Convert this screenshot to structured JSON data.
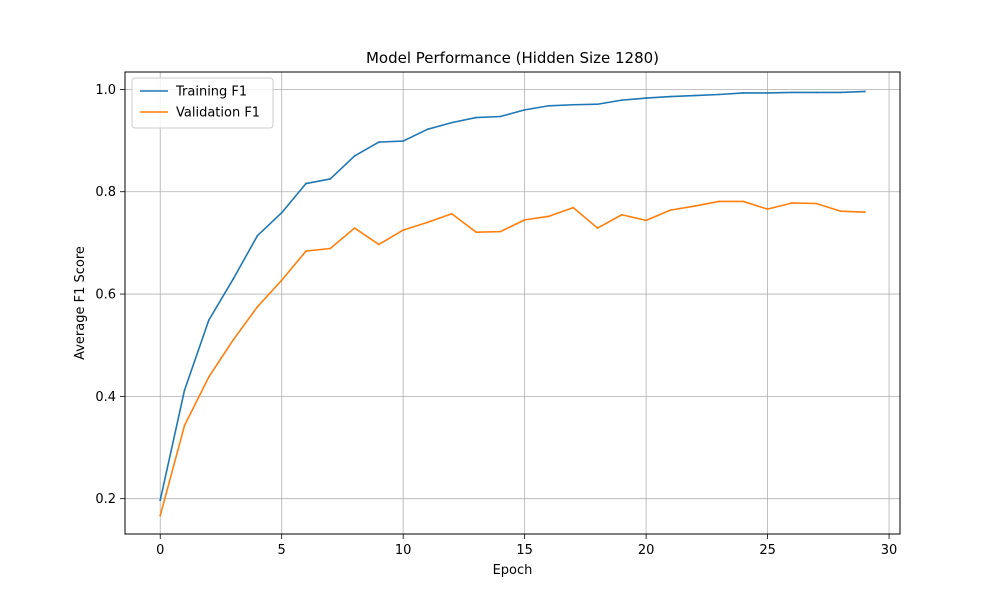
{
  "chart_data": {
    "type": "line",
    "title": "Model Performance (Hidden Size 1280)",
    "xlabel": "Epoch",
    "ylabel": "Average F1 Score",
    "xlim": [
      -1.45,
      30.45
    ],
    "ylim": [
      0.131,
      1.034
    ],
    "xticks": [
      0,
      5,
      10,
      15,
      20,
      25,
      30
    ],
    "xtick_labels": [
      "0",
      "5",
      "10",
      "15",
      "20",
      "25",
      "30"
    ],
    "yticks": [
      0.2,
      0.4,
      0.6,
      0.8,
      1.0
    ],
    "ytick_labels": [
      "0.2",
      "0.4",
      "0.6",
      "0.8",
      "1.0"
    ],
    "grid": true,
    "legend_position": "top-left",
    "x": [
      0,
      1,
      2,
      3,
      4,
      5,
      6,
      7,
      8,
      9,
      10,
      11,
      12,
      13,
      14,
      15,
      16,
      17,
      18,
      19,
      20,
      21,
      22,
      23,
      24,
      25,
      26,
      27,
      28,
      29
    ],
    "series": [
      {
        "name": "Training F1",
        "color": "#1f77b4",
        "values": [
          0.197,
          0.412,
          0.549,
          0.629,
          0.714,
          0.759,
          0.816,
          0.825,
          0.87,
          0.897,
          0.899,
          0.922,
          0.935,
          0.945,
          0.947,
          0.96,
          0.968,
          0.97,
          0.971,
          0.979,
          0.983,
          0.986,
          0.988,
          0.99,
          0.993,
          0.993,
          0.994,
          0.994,
          0.994,
          0.996
        ]
      },
      {
        "name": "Validation F1",
        "color": "#ff7f0e",
        "values": [
          0.167,
          0.343,
          0.438,
          0.51,
          0.575,
          0.627,
          0.684,
          0.689,
          0.729,
          0.697,
          0.725,
          0.74,
          0.757,
          0.721,
          0.722,
          0.745,
          0.752,
          0.769,
          0.729,
          0.755,
          0.744,
          0.764,
          0.772,
          0.781,
          0.781,
          0.766,
          0.778,
          0.777,
          0.762,
          0.76
        ]
      }
    ]
  }
}
